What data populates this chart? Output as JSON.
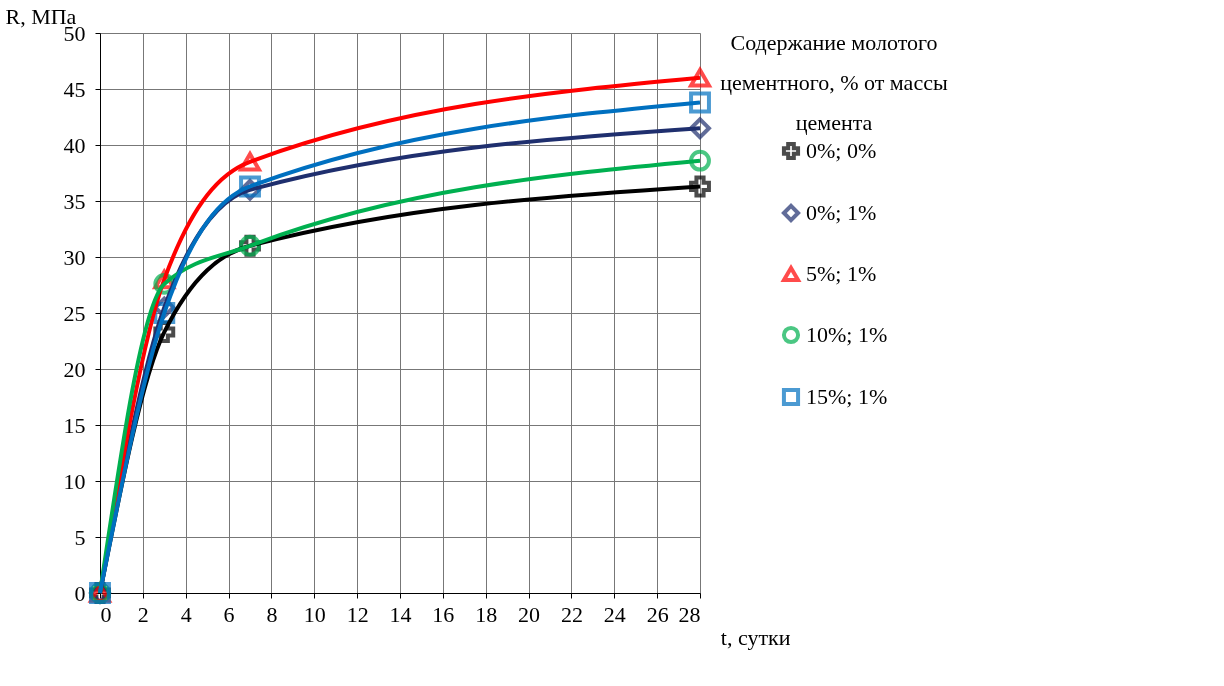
{
  "chart_data": {
    "type": "line",
    "xlabel": "t, сутки",
    "ylabel": "R, МПа",
    "legend_title": "Содержание молотого цементного, % от массы цемента",
    "x": [
      0,
      3,
      7,
      28
    ],
    "series": [
      {
        "name": "0%; 0%",
        "color": "#000000",
        "marker": "cross",
        "values": [
          0,
          23.3,
          31,
          36.3
        ]
      },
      {
        "name": "0%; 1%",
        "color": "#1f2f6e",
        "marker": "diamond",
        "values": [
          0,
          25.5,
          36,
          41.5
        ]
      },
      {
        "name": "5%; 1%",
        "color": "#ff0000",
        "marker": "triangle",
        "values": [
          0,
          28,
          38.5,
          46
        ]
      },
      {
        "name": "10%; 1%",
        "color": "#00b050",
        "marker": "circle",
        "values": [
          0,
          27.6,
          31,
          38.6
        ]
      },
      {
        "name": "15%; 1%",
        "color": "#0070c0",
        "marker": "square",
        "values": [
          0,
          25,
          36.3,
          43.8
        ]
      }
    ],
    "xlim": [
      0,
      28
    ],
    "xticks": [
      0,
      2,
      4,
      6,
      8,
      10,
      12,
      14,
      16,
      18,
      20,
      22,
      24,
      26,
      28
    ],
    "ylim": [
      0,
      50
    ],
    "yticks": [
      0,
      5,
      10,
      15,
      20,
      25,
      30,
      35,
      40,
      45,
      50
    ],
    "grid": true,
    "legend": "right",
    "line_style": "solid"
  }
}
